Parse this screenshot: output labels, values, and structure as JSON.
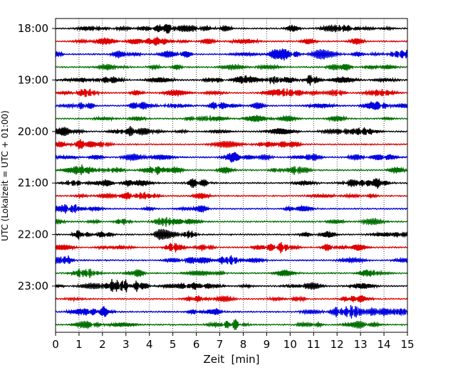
{
  "chart_data": {
    "type": "line",
    "title": "",
    "xlabel": "Zeit  [min]",
    "ylabel": "UTC (Lokalzeit = UTC + 01:00)",
    "xlim": [
      0,
      15
    ],
    "x_ticks": [
      0,
      1,
      2,
      3,
      4,
      5,
      6,
      7,
      8,
      9,
      10,
      11,
      12,
      13,
      14,
      15
    ],
    "x_tick_labels": [
      "0",
      "1",
      "2",
      "3",
      "4",
      "5",
      "6",
      "7",
      "8",
      "9",
      "10",
      "11",
      "12",
      "13",
      "14",
      "15"
    ],
    "y_tick_labels": [
      "18:00",
      "19:00",
      "20:00",
      "21:00",
      "22:00",
      "23:00"
    ],
    "grid": "vertical dotted at every minute",
    "trace_minutes_per_row": 15,
    "trace_start": "18:00",
    "trace_end": "23:45",
    "row_colors": [
      "#000000",
      "#e00000",
      "#0000e0",
      "#007000"
    ],
    "series": [
      {
        "start": "18:00",
        "color": "#000000"
      },
      {
        "start": "18:15",
        "color": "#e00000"
      },
      {
        "start": "18:30",
        "color": "#0000e0"
      },
      {
        "start": "18:45",
        "color": "#007000"
      },
      {
        "start": "19:00",
        "color": "#000000"
      },
      {
        "start": "19:15",
        "color": "#e00000"
      },
      {
        "start": "19:30",
        "color": "#0000e0"
      },
      {
        "start": "19:45",
        "color": "#007000"
      },
      {
        "start": "20:00",
        "color": "#000000"
      },
      {
        "start": "20:15",
        "color": "#e00000"
      },
      {
        "start": "20:30",
        "color": "#0000e0"
      },
      {
        "start": "20:45",
        "color": "#007000"
      },
      {
        "start": "21:00",
        "color": "#000000"
      },
      {
        "start": "21:15",
        "color": "#e00000"
      },
      {
        "start": "21:30",
        "color": "#0000e0"
      },
      {
        "start": "21:45",
        "color": "#007000"
      },
      {
        "start": "22:00",
        "color": "#000000"
      },
      {
        "start": "22:15",
        "color": "#e00000"
      },
      {
        "start": "22:30",
        "color": "#0000e0"
      },
      {
        "start": "22:45",
        "color": "#007000"
      },
      {
        "start": "23:00",
        "color": "#000000"
      },
      {
        "start": "23:15",
        "color": "#e00000"
      },
      {
        "start": "23:30",
        "color": "#0000e0"
      },
      {
        "start": "23:45",
        "color": "#007000"
      }
    ]
  }
}
